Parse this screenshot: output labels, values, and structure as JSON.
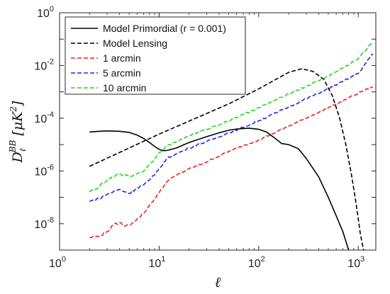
{
  "chart_data": {
    "type": "line",
    "xscale": "log",
    "yscale": "log",
    "xlim": [
      1,
      1500
    ],
    "ylim": [
      1e-09,
      1
    ],
    "xlabel": "ℓ",
    "ylabel": "D_ℓ^{BB} [μK²]",
    "x_ticks": [
      {
        "value": 1,
        "base": "10",
        "exp": "0"
      },
      {
        "value": 10,
        "base": "10",
        "exp": "1"
      },
      {
        "value": 100,
        "base": "10",
        "exp": "2"
      },
      {
        "value": 1000,
        "base": "10",
        "exp": "3"
      }
    ],
    "y_ticks": [
      {
        "value": 1e-08,
        "base": "10",
        "exp": "-8"
      },
      {
        "value": 1e-06,
        "base": "10",
        "exp": "-6"
      },
      {
        "value": 0.0001,
        "base": "10",
        "exp": "-4"
      },
      {
        "value": 0.01,
        "base": "10",
        "exp": "-2"
      },
      {
        "value": 1,
        "base": "10",
        "exp": "0"
      }
    ],
    "grid": false,
    "legend_position": "top-left",
    "series": [
      {
        "name": "Model Primordial (r = 0.001)",
        "color": "#000000",
        "dash": "solid",
        "noisy": false,
        "points": [
          [
            2,
            3e-05
          ],
          [
            2.5,
            3.2e-05
          ],
          [
            3,
            3.3e-05
          ],
          [
            4,
            3.2e-05
          ],
          [
            5,
            2.9e-05
          ],
          [
            6,
            2.3e-05
          ],
          [
            7,
            1.7e-05
          ],
          [
            8,
            1.2e-05
          ],
          [
            9,
            8.5e-06
          ],
          [
            10,
            6.6e-06
          ],
          [
            11,
            5.9e-06
          ],
          [
            12,
            6e-06
          ],
          [
            15,
            7.5e-06
          ],
          [
            20,
            1.2e-05
          ],
          [
            30,
            2e-05
          ],
          [
            40,
            2.8e-05
          ],
          [
            50,
            3.5e-05
          ],
          [
            60,
            3.9e-05
          ],
          [
            80,
            4.2e-05
          ],
          [
            100,
            3.8e-05
          ],
          [
            120,
            3e-05
          ],
          [
            150,
            1.6e-05
          ],
          [
            170,
            1.1e-05
          ],
          [
            200,
            1e-05
          ],
          [
            250,
            7e-06
          ],
          [
            300,
            3e-06
          ],
          [
            400,
            6e-07
          ],
          [
            500,
            1e-07
          ],
          [
            600,
            2e-08
          ],
          [
            700,
            5e-09
          ],
          [
            800,
            1e-09
          ]
        ]
      },
      {
        "name": "Model Lensing",
        "color": "#000000",
        "dash": "dashed",
        "noisy": false,
        "points": [
          [
            2,
            1.5e-06
          ],
          [
            10,
            2.5e-05
          ],
          [
            50,
            0.00035
          ],
          [
            100,
            0.0013
          ],
          [
            200,
            0.0055
          ],
          [
            270,
            0.0075
          ],
          [
            350,
            0.006
          ],
          [
            450,
            0.003
          ],
          [
            550,
            0.0007
          ],
          [
            650,
            0.0001
          ],
          [
            750,
            1e-05
          ],
          [
            850,
            8e-07
          ],
          [
            950,
            6e-08
          ],
          [
            1050,
            4e-09
          ],
          [
            1130,
            1e-09
          ]
        ]
      },
      {
        "name": "1 arcmin",
        "color": "#e8231f",
        "dash": "dashed",
        "noisy": true,
        "points": [
          [
            2,
            3e-09
          ],
          [
            2.5,
            3.3e-09
          ],
          [
            3,
            5e-09
          ],
          [
            3.5,
            9e-09
          ],
          [
            4,
            1.1e-08
          ],
          [
            4.5,
            8e-09
          ],
          [
            5,
            9e-09
          ],
          [
            6,
            1.5e-08
          ],
          [
            7,
            2.5e-08
          ],
          [
            8,
            5e-08
          ],
          [
            9,
            9e-08
          ],
          [
            10,
            1.5e-07
          ],
          [
            12,
            4e-07
          ],
          [
            15,
            7e-07
          ],
          [
            20,
            1.2e-06
          ],
          [
            30,
            2.2e-06
          ],
          [
            50,
            5.5e-06
          ],
          [
            70,
            9e-06
          ],
          [
            100,
            1.5e-05
          ],
          [
            150,
            3e-05
          ],
          [
            200,
            5e-05
          ],
          [
            300,
            0.0001
          ],
          [
            500,
            0.00025
          ],
          [
            700,
            0.00045
          ],
          [
            1000,
            0.0009
          ],
          [
            1400,
            0.0016
          ]
        ]
      },
      {
        "name": "5 arcmin",
        "color": "#2424e0",
        "dash": "dashed",
        "noisy": true,
        "points": [
          [
            2,
            7e-08
          ],
          [
            2.5,
            9e-08
          ],
          [
            3,
            1.3e-07
          ],
          [
            4,
            2e-07
          ],
          [
            5,
            1.4e-07
          ],
          [
            6,
            2.3e-07
          ],
          [
            7,
            3e-07
          ],
          [
            8,
            4.5e-07
          ],
          [
            9,
            7e-07
          ],
          [
            10,
            1.2e-06
          ],
          [
            12,
            3e-06
          ],
          [
            15,
            4.5e-06
          ],
          [
            20,
            7.5e-06
          ],
          [
            30,
            1.3e-05
          ],
          [
            50,
            2.8e-05
          ],
          [
            70,
            4.5e-05
          ],
          [
            100,
            8e-05
          ],
          [
            150,
            0.00016
          ],
          [
            200,
            0.00027
          ],
          [
            300,
            0.00055
          ],
          [
            500,
            0.0013
          ],
          [
            700,
            0.0025
          ],
          [
            1000,
            0.005
          ],
          [
            1400,
            0.028
          ]
        ]
      },
      {
        "name": "10 arcmin",
        "color": "#20d820",
        "dash": "dashed",
        "noisy": true,
        "points": [
          [
            2,
            1.6e-07
          ],
          [
            2.5,
            2.5e-07
          ],
          [
            3,
            4.5e-07
          ],
          [
            3.5,
            6e-07
          ],
          [
            4,
            8e-07
          ],
          [
            5,
            6e-07
          ],
          [
            6,
            8e-07
          ],
          [
            7,
            1e-06
          ],
          [
            8,
            1.7e-06
          ],
          [
            9,
            3e-06
          ],
          [
            10,
            5e-06
          ],
          [
            12,
            9e-06
          ],
          [
            15,
            1.3e-05
          ],
          [
            20,
            2.2e-05
          ],
          [
            30,
            3.8e-05
          ],
          [
            50,
            8e-05
          ],
          [
            70,
            0.00014
          ],
          [
            100,
            0.00025
          ],
          [
            150,
            0.0005
          ],
          [
            200,
            0.00085
          ],
          [
            300,
            0.0016
          ],
          [
            500,
            0.004
          ],
          [
            700,
            0.008
          ],
          [
            1000,
            0.018
          ],
          [
            1400,
            0.08
          ]
        ]
      }
    ]
  }
}
